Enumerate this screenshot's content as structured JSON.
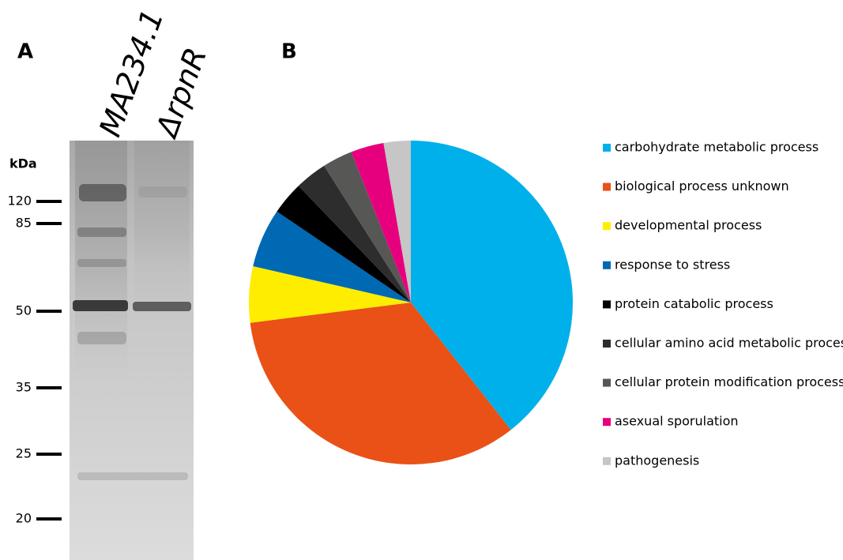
{
  "panel_a": {
    "label": "A",
    "lanes": [
      "MA234.1",
      "ΔrpnR"
    ],
    "unit": "kDa",
    "markers": [
      120,
      85,
      50,
      35,
      25,
      20
    ]
  },
  "chart_data": {
    "type": "pie",
    "panel_label": "B",
    "categories": [
      "carbohydrate metabolic process",
      "biological process unknown",
      "developmental process",
      "response to stress",
      "protein catabolic process",
      "cellular amino acid metabolic process",
      "cellular protein modification process",
      "asexual sporulation",
      "pathogenesis"
    ],
    "values": [
      39.4,
      33.6,
      5.6,
      5.9,
      3.3,
      3.2,
      3.0,
      3.3,
      2.7
    ],
    "colors": [
      "#00b0eb",
      "#e95117",
      "#ffed00",
      "#0069b4",
      "#000000",
      "#2d2d2d",
      "#575756",
      "#e6007e",
      "#c6c6c6"
    ],
    "legend": "right"
  }
}
